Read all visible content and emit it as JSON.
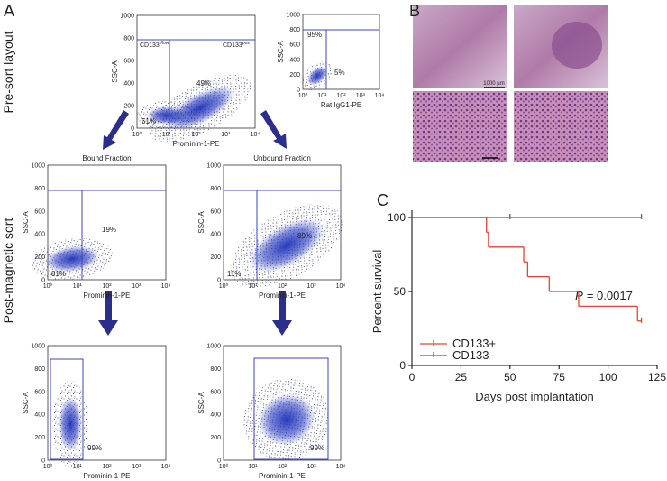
{
  "figure": {
    "panel_labels": [
      "A",
      "B",
      "C"
    ],
    "row_labels": [
      "Pre-sort layout",
      "Post-magnetic sort"
    ],
    "scale_bar": "1000 µm",
    "flow_axes": {
      "y_ticks": [
        "0",
        "200",
        "400",
        "600",
        "800",
        "1000"
      ],
      "x_ticks": [
        "10⁰",
        "10¹",
        "10²",
        "10³",
        "10⁴"
      ]
    },
    "flow_plots": [
      {
        "y_label": "SSC-A",
        "x_label": "Prominin-1-PE",
        "gate_labels": [
          {
            "text": "CD133",
            "sup": "-/low"
          },
          {
            "text": "CD133",
            "sup": "pos"
          }
        ],
        "percents": [
          "49%",
          "51%"
        ]
      },
      {
        "y_label": "SSC-A",
        "x_label": "Rat IgG1-PE",
        "percents": [
          "95%",
          "5%"
        ]
      },
      {
        "title": "Bound Fraction",
        "y_label": "SSC-A",
        "x_label": "Prominin-1-PE",
        "percents": [
          "19%",
          "81%"
        ]
      },
      {
        "title": "Unbound Fraction",
        "y_label": "SSC-A",
        "x_label": "Prominin-1-PE",
        "percents": [
          "11%",
          "89%"
        ]
      },
      {
        "y_label": "SSC-A",
        "x_label": "Prominin-1-PE",
        "percents": [
          "99%"
        ]
      },
      {
        "y_label": "SSC-A",
        "x_label": "Prominin-1-PE",
        "percents": [
          "99%"
        ]
      }
    ]
  },
  "chart_data": {
    "type": "survival",
    "x_label": "Days post implantation",
    "y_label": "Percent survival",
    "xlim": [
      0,
      125
    ],
    "xticks": [
      0,
      25,
      50,
      75,
      100,
      125
    ],
    "ylim": [
      0,
      100
    ],
    "yticks": [
      0,
      50,
      100
    ],
    "annotation": {
      "symbol": "P",
      "text": "= 0.0017"
    },
    "series": [
      {
        "name": "CD133+",
        "color": "#e8432e",
        "x": [
          0,
          38,
          39,
          57,
          59,
          70,
          85,
          115,
          117
        ],
        "values": [
          100,
          90,
          80,
          70,
          60,
          50,
          40,
          30,
          30
        ],
        "censored_x": [
          117
        ]
      },
      {
        "name": "CD133-",
        "color": "#3a64c8",
        "x": [
          0,
          117
        ],
        "values": [
          100,
          100
        ],
        "censored_x": [
          50,
          117
        ]
      }
    ]
  }
}
